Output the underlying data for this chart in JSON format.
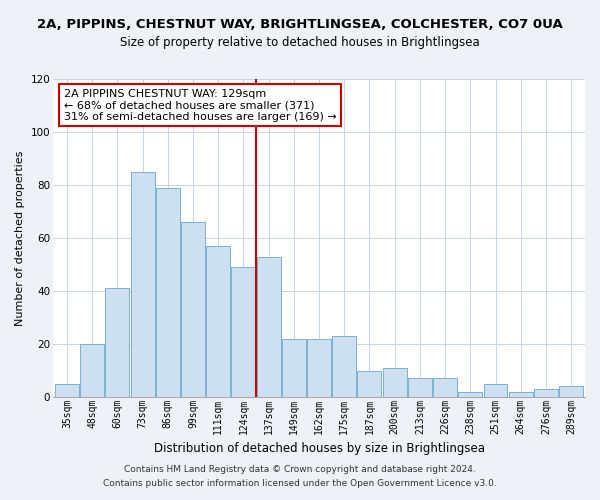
{
  "title": "2A, PIPPINS, CHESTNUT WAY, BRIGHTLINGSEA, COLCHESTER, CO7 0UA",
  "subtitle": "Size of property relative to detached houses in Brightlingsea",
  "xlabel": "Distribution of detached houses by size in Brightlingsea",
  "ylabel": "Number of detached properties",
  "bar_labels": [
    "35sqm",
    "48sqm",
    "60sqm",
    "73sqm",
    "86sqm",
    "99sqm",
    "111sqm",
    "124sqm",
    "137sqm",
    "149sqm",
    "162sqm",
    "175sqm",
    "187sqm",
    "200sqm",
    "213sqm",
    "226sqm",
    "238sqm",
    "251sqm",
    "264sqm",
    "276sqm",
    "289sqm"
  ],
  "bar_values": [
    5,
    20,
    41,
    85,
    79,
    66,
    57,
    49,
    53,
    22,
    22,
    23,
    10,
    11,
    7,
    7,
    2,
    5,
    2,
    3,
    4
  ],
  "bar_color": "#cde0f0",
  "bar_edge_color": "#7ab0d4",
  "vline_x_index": 7.5,
  "vline_color": "#cc0000",
  "annotation_line1": "2A PIPPINS CHESTNUT WAY: 129sqm",
  "annotation_line2": "← 68% of detached houses are smaller (371)",
  "annotation_line3": "31% of semi-detached houses are larger (169) →",
  "annotation_box_color": "#ffffff",
  "annotation_box_edge_color": "#cc0000",
  "ylim": [
    0,
    120
  ],
  "yticks": [
    0,
    20,
    40,
    60,
    80,
    100,
    120
  ],
  "footer_line1": "Contains HM Land Registry data © Crown copyright and database right 2024.",
  "footer_line2": "Contains public sector information licensed under the Open Government Licence v3.0.",
  "bg_color": "#eef2f7",
  "plot_bg_color": "#ffffff",
  "grid_color": "#c5d5e5",
  "title_fontsize": 9.5,
  "subtitle_fontsize": 8.5,
  "xlabel_fontsize": 8.5,
  "ylabel_fontsize": 8,
  "tick_fontsize": 7,
  "annotation_fontsize": 8,
  "footer_fontsize": 6.5
}
